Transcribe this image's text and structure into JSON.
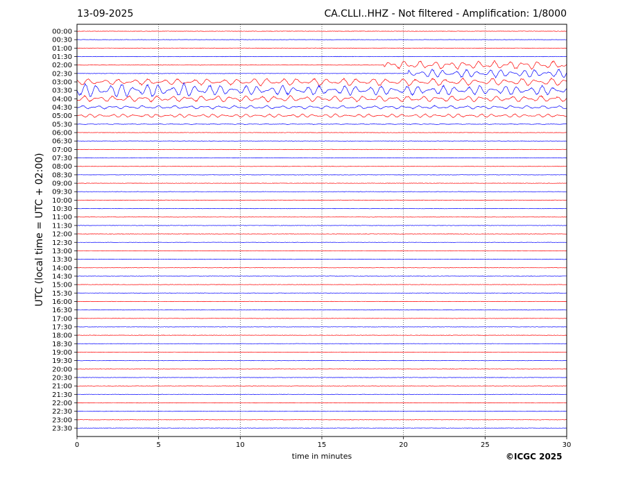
{
  "header": {
    "date": "13-09-2025",
    "title": "CA.CLLI..HHZ - Not filtered - Amplification: 1/8000"
  },
  "footer": {
    "copyright": "©ICGC 2025"
  },
  "colors": {
    "trace_a": "#ff0000",
    "trace_b": "#0000ff",
    "grid": "#000000"
  },
  "chart_data": {
    "type": "line",
    "title": "CA.CLLI..HHZ - Not filtered - Amplification: 1/8000",
    "xlabel": "time in minutes",
    "ylabel": "UTC (local time = UTC + 02:00)",
    "xlim": [
      0,
      30
    ],
    "x_ticks": [
      0,
      5,
      10,
      15,
      20,
      25,
      30
    ],
    "y_ticks": [
      "00:00",
      "00:30",
      "01:00",
      "01:30",
      "02:00",
      "02:30",
      "03:00",
      "03:30",
      "04:00",
      "04:30",
      "05:00",
      "05:30",
      "06:00",
      "06:30",
      "07:00",
      "07:30",
      "08:00",
      "08:30",
      "09:00",
      "09:30",
      "10:00",
      "10:30",
      "11:00",
      "11:30",
      "12:00",
      "12:30",
      "13:00",
      "13:30",
      "14:00",
      "14:30",
      "15:00",
      "15:30",
      "16:00",
      "16:30",
      "17:00",
      "17:30",
      "18:00",
      "18:30",
      "19:00",
      "19:30",
      "20:00",
      "20:30",
      "21:00",
      "21:30",
      "22:00",
      "22:30",
      "23:00",
      "23:30"
    ],
    "grid": "vertical dotted",
    "trace_colors": [
      "#ff0000",
      "#0000ff"
    ],
    "active_rows": {
      "02:00": [
        [
          18.8,
          30,
          0.6
        ]
      ],
      "02:30": [
        [
          20.3,
          30,
          0.6
        ]
      ],
      "03:00": [
        [
          0,
          10,
          0.45
        ],
        [
          10,
          30,
          0.55
        ]
      ],
      "03:30": [
        [
          0,
          8.2,
          1.0
        ],
        [
          8.2,
          30,
          0.7
        ]
      ],
      "04:00": [
        [
          0,
          30,
          0.45
        ]
      ],
      "04:30": [
        [
          0,
          30,
          0.25
        ]
      ],
      "05:00": [
        [
          0,
          30,
          0.25
        ]
      ],
      "05:30": [
        [
          0,
          30,
          0.05
        ]
      ]
    }
  }
}
